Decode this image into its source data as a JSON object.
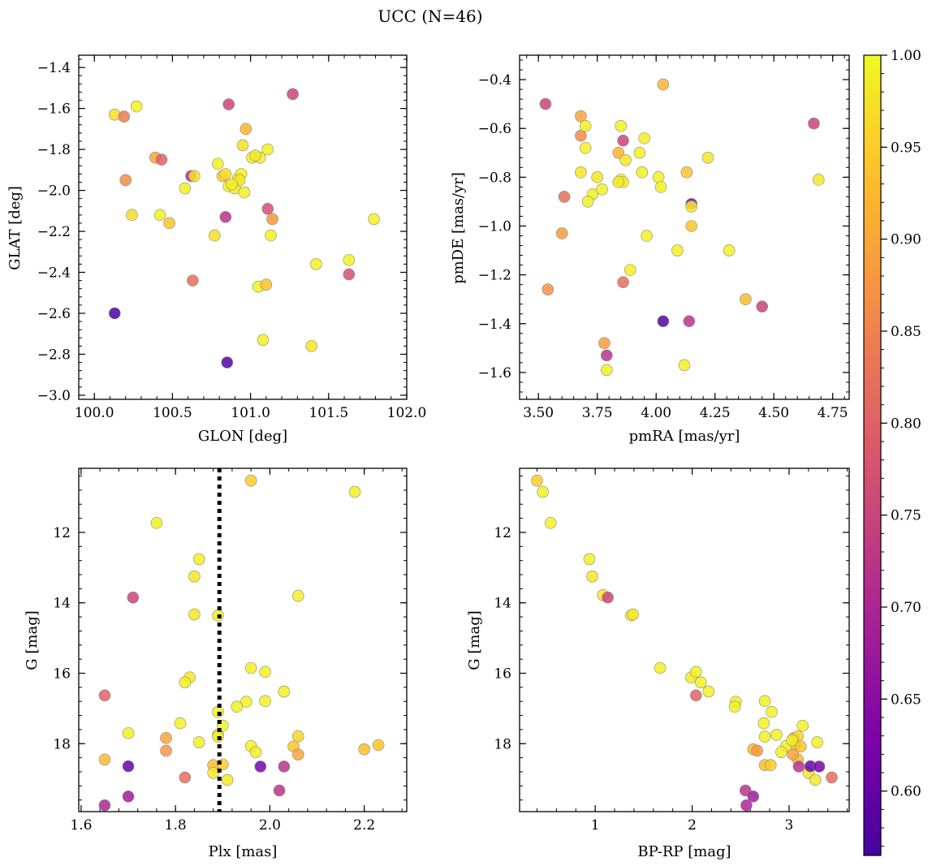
{
  "figure": {
    "title": "UCC (N=46)"
  },
  "colorbar": {
    "range": [
      0.565,
      1.0
    ],
    "ticks": [
      0.6,
      0.65,
      0.7,
      0.75,
      0.8,
      0.85,
      0.9,
      0.95,
      1.0
    ],
    "tick_labels": [
      "0.60",
      "0.65",
      "0.70",
      "0.75",
      "0.80",
      "0.85",
      "0.90",
      "0.95",
      "1.00"
    ],
    "colormap": "plasma"
  },
  "chart_data": [
    {
      "type": "scatter",
      "id": "glon-glat",
      "xlabel": "GLON [deg]",
      "ylabel": "GLAT [deg]",
      "xlim": [
        99.9,
        102.0
      ],
      "ylim": [
        -3.02,
        -1.34
      ],
      "xticks": [
        100.0,
        100.5,
        101.0,
        101.5,
        102.0
      ],
      "xtick_labels": [
        "100.0",
        "100.5",
        "101.0",
        "101.5",
        "102.0"
      ],
      "yticks": [
        -3.0,
        -2.8,
        -2.6,
        -2.4,
        -2.2,
        -2.0,
        -1.8,
        -1.6,
        -1.4
      ],
      "ytick_labels": [
        "−3.0",
        "−2.8",
        "−2.6",
        "−2.4",
        "−2.2",
        "−2.0",
        "−1.8",
        "−1.6",
        "−1.4"
      ],
      "points": [
        [
          100.13,
          -1.63,
          0.97
        ],
        [
          100.19,
          -1.64,
          0.84
        ],
        [
          100.27,
          -1.59,
          0.99
        ],
        [
          100.2,
          -1.95,
          0.86
        ],
        [
          100.24,
          -2.12,
          0.97
        ],
        [
          100.13,
          -2.6,
          0.57
        ],
        [
          100.39,
          -1.84,
          0.9
        ],
        [
          100.43,
          -1.85,
          0.8
        ],
        [
          100.42,
          -2.12,
          0.99
        ],
        [
          100.48,
          -2.16,
          0.94
        ],
        [
          100.58,
          -1.99,
          0.99
        ],
        [
          100.62,
          -1.93,
          0.7
        ],
        [
          100.64,
          -1.93,
          0.98
        ],
        [
          100.63,
          -2.44,
          0.82
        ],
        [
          100.77,
          -2.22,
          0.97
        ],
        [
          100.79,
          -1.87,
          0.99
        ],
        [
          100.82,
          -1.93,
          0.95
        ],
        [
          100.84,
          -1.92,
          0.97
        ],
        [
          100.86,
          -1.98,
          0.99
        ],
        [
          100.86,
          -1.58,
          0.75
        ],
        [
          100.84,
          -2.13,
          0.72
        ],
        [
          100.85,
          -2.84,
          0.58
        ],
        [
          100.9,
          -1.99,
          0.98
        ],
        [
          100.92,
          -1.94,
          0.99
        ],
        [
          100.94,
          -1.92,
          0.99
        ],
        [
          100.95,
          -1.78,
          0.97
        ],
        [
          100.97,
          -1.7,
          0.92
        ],
        [
          100.96,
          -2.01,
          0.99
        ],
        [
          101.01,
          -1.84,
          0.99
        ],
        [
          101.06,
          -1.84,
          0.99
        ],
        [
          101.11,
          -1.8,
          0.99
        ],
        [
          101.11,
          -2.09,
          0.77
        ],
        [
          101.14,
          -2.14,
          0.88
        ],
        [
          101.13,
          -2.22,
          0.99
        ],
        [
          101.05,
          -2.47,
          0.99
        ],
        [
          101.1,
          -2.46,
          0.94
        ],
        [
          101.08,
          -2.73,
          0.99
        ],
        [
          101.27,
          -1.53,
          0.75
        ],
        [
          101.39,
          -2.76,
          0.98
        ],
        [
          101.42,
          -2.36,
          0.99
        ],
        [
          101.63,
          -2.34,
          0.99
        ],
        [
          101.63,
          -2.41,
          0.77
        ],
        [
          101.79,
          -2.14,
          0.99
        ],
        [
          100.93,
          -1.95,
          0.98
        ],
        [
          101.03,
          -1.83,
          0.98
        ],
        [
          100.88,
          -1.97,
          0.99
        ]
      ]
    },
    {
      "type": "scatter",
      "id": "pm",
      "xlabel": "pmRA [mas/yr]",
      "ylabel": "pmDE [mas/yr]",
      "xlim": [
        3.42,
        4.82
      ],
      "ylim": [
        -1.71,
        -0.3
      ],
      "xticks": [
        3.5,
        3.75,
        4.0,
        4.25,
        4.5,
        4.75
      ],
      "xtick_labels": [
        "3.50",
        "3.75",
        "4.00",
        "4.25",
        "4.50",
        "4.75"
      ],
      "yticks": [
        -1.6,
        -1.4,
        -1.2,
        -1.0,
        -0.8,
        -0.6,
        -0.4
      ],
      "ytick_labels": [
        "−1.6",
        "−1.4",
        "−1.2",
        "−1.0",
        "−0.8",
        "−0.6",
        "−0.4"
      ],
      "points": [
        [
          3.53,
          -0.5,
          0.75
        ],
        [
          3.68,
          -0.55,
          0.9
        ],
        [
          3.68,
          -0.63,
          0.86
        ],
        [
          3.7,
          -0.59,
          0.99
        ],
        [
          3.7,
          -0.68,
          0.99
        ],
        [
          3.68,
          -0.78,
          0.98
        ],
        [
          3.61,
          -0.88,
          0.82
        ],
        [
          3.6,
          -1.03,
          0.88
        ],
        [
          3.54,
          -1.26,
          0.87
        ],
        [
          3.73,
          -0.87,
          0.99
        ],
        [
          3.75,
          -0.8,
          0.98
        ],
        [
          3.71,
          -0.9,
          0.99
        ],
        [
          3.77,
          -0.85,
          0.99
        ],
        [
          3.84,
          -0.7,
          0.92
        ],
        [
          3.86,
          -0.65,
          0.75
        ],
        [
          3.85,
          -0.59,
          0.99
        ],
        [
          3.85,
          -0.81,
          0.99
        ],
        [
          3.86,
          -0.82,
          0.99
        ],
        [
          3.84,
          -0.82,
          0.98
        ],
        [
          3.87,
          -0.73,
          0.98
        ],
        [
          3.93,
          -0.7,
          0.99
        ],
        [
          3.95,
          -0.64,
          0.99
        ],
        [
          3.94,
          -0.78,
          0.99
        ],
        [
          4.01,
          -0.8,
          0.99
        ],
        [
          4.03,
          -0.42,
          0.92
        ],
        [
          4.02,
          -0.84,
          0.99
        ],
        [
          4.13,
          -0.78,
          0.94
        ],
        [
          4.15,
          -0.91,
          0.62
        ],
        [
          4.15,
          -0.92,
          0.99
        ],
        [
          4.15,
          -1.0,
          0.94
        ],
        [
          4.22,
          -0.72,
          0.98
        ],
        [
          3.96,
          -1.04,
          0.99
        ],
        [
          4.09,
          -1.1,
          0.99
        ],
        [
          4.31,
          -1.1,
          0.99
        ],
        [
          3.89,
          -1.18,
          0.99
        ],
        [
          3.86,
          -1.23,
          0.82
        ],
        [
          4.38,
          -1.3,
          0.93
        ],
        [
          4.45,
          -1.33,
          0.75
        ],
        [
          4.03,
          -1.39,
          0.58
        ],
        [
          4.14,
          -1.39,
          0.72
        ],
        [
          3.78,
          -1.48,
          0.89
        ],
        [
          3.79,
          -1.53,
          0.72
        ],
        [
          3.79,
          -1.59,
          0.99
        ],
        [
          4.12,
          -1.57,
          0.99
        ],
        [
          4.67,
          -0.58,
          0.75
        ],
        [
          4.69,
          -0.81,
          0.98
        ]
      ]
    },
    {
      "type": "scatter",
      "id": "plx-g",
      "xlabel": "Plx [mas]",
      "ylabel": "G [mag]",
      "xlim": [
        1.595,
        2.29
      ],
      "ylim": [
        19.93,
        10.18
      ],
      "y_inverted": true,
      "vline": 1.893,
      "xticks": [
        1.6,
        1.8,
        2.0,
        2.2
      ],
      "xtick_labels": [
        "1.6",
        "1.8",
        "2.0",
        "2.2"
      ],
      "yticks": [
        12,
        14,
        16,
        18
      ],
      "ytick_labels": [
        "12",
        "14",
        "16",
        "18"
      ],
      "points": [
        [
          1.96,
          10.53,
          0.95
        ],
        [
          2.18,
          10.85,
          0.99
        ],
        [
          1.76,
          11.73,
          0.99
        ],
        [
          1.85,
          12.76,
          0.99
        ],
        [
          1.84,
          13.25,
          0.98
        ],
        [
          1.71,
          13.85,
          0.75
        ],
        [
          1.84,
          14.33,
          0.98
        ],
        [
          1.89,
          14.36,
          0.99
        ],
        [
          2.06,
          13.8,
          0.99
        ],
        [
          1.96,
          15.85,
          0.99
        ],
        [
          1.99,
          15.96,
          0.99
        ],
        [
          1.83,
          16.12,
          0.98
        ],
        [
          1.82,
          16.26,
          0.99
        ],
        [
          1.65,
          16.63,
          0.8
        ],
        [
          2.03,
          16.52,
          0.99
        ],
        [
          1.95,
          16.81,
          0.99
        ],
        [
          1.99,
          16.79,
          0.99
        ],
        [
          1.93,
          16.95,
          0.99
        ],
        [
          1.89,
          17.1,
          0.99
        ],
        [
          1.81,
          17.42,
          0.99
        ],
        [
          1.9,
          17.49,
          0.99
        ],
        [
          1.7,
          17.7,
          0.99
        ],
        [
          1.89,
          17.75,
          0.99
        ],
        [
          1.89,
          17.8,
          0.99
        ],
        [
          1.78,
          17.84,
          0.9
        ],
        [
          1.85,
          17.96,
          0.99
        ],
        [
          1.96,
          18.07,
          0.99
        ],
        [
          1.97,
          18.24,
          0.99
        ],
        [
          2.06,
          17.79,
          0.96
        ],
        [
          2.05,
          18.08,
          0.94
        ],
        [
          2.06,
          18.31,
          0.9
        ],
        [
          2.2,
          18.16,
          0.93
        ],
        [
          2.23,
          18.04,
          0.94
        ],
        [
          1.78,
          18.2,
          0.88
        ],
        [
          1.65,
          18.45,
          0.93
        ],
        [
          1.7,
          18.64,
          0.6
        ],
        [
          1.88,
          18.61,
          0.93
        ],
        [
          1.9,
          18.59,
          0.95
        ],
        [
          1.88,
          18.83,
          0.98
        ],
        [
          1.91,
          19.03,
          0.98
        ],
        [
          1.98,
          18.65,
          0.62
        ],
        [
          2.03,
          18.65,
          0.72
        ],
        [
          1.82,
          18.96,
          0.82
        ],
        [
          2.02,
          19.33,
          0.72
        ],
        [
          1.7,
          19.5,
          0.68
        ],
        [
          1.65,
          19.75,
          0.7
        ]
      ]
    },
    {
      "type": "scatter",
      "id": "cmd",
      "xlabel": "BP-RP [mag]",
      "ylabel": "G [mag]",
      "xlim": [
        0.22,
        3.62
      ],
      "ylim": [
        19.93,
        10.18
      ],
      "y_inverted": true,
      "xticks": [
        1,
        2,
        3
      ],
      "xtick_labels": [
        "1",
        "2",
        "3"
      ],
      "yticks": [
        12,
        14,
        16,
        18
      ],
      "ytick_labels": [
        "12",
        "14",
        "16",
        "18"
      ],
      "points": [
        [
          0.4,
          10.53,
          0.95
        ],
        [
          0.46,
          10.85,
          0.99
        ],
        [
          0.54,
          11.73,
          0.99
        ],
        [
          0.94,
          12.76,
          0.99
        ],
        [
          0.97,
          13.25,
          0.98
        ],
        [
          1.08,
          13.78,
          0.98
        ],
        [
          1.13,
          13.85,
          0.75
        ],
        [
          1.37,
          14.36,
          0.99
        ],
        [
          1.39,
          14.33,
          0.98
        ],
        [
          1.67,
          15.85,
          0.99
        ],
        [
          1.99,
          16.12,
          0.98
        ],
        [
          2.04,
          15.96,
          0.99
        ],
        [
          2.04,
          16.63,
          0.8
        ],
        [
          2.09,
          16.26,
          0.99
        ],
        [
          2.17,
          16.52,
          0.99
        ],
        [
          2.45,
          16.81,
          0.99
        ],
        [
          2.44,
          16.95,
          0.99
        ],
        [
          2.75,
          16.79,
          0.99
        ],
        [
          2.82,
          17.1,
          0.99
        ],
        [
          2.74,
          17.42,
          0.99
        ],
        [
          2.87,
          17.75,
          0.99
        ],
        [
          2.75,
          17.8,
          0.99
        ],
        [
          3.14,
          17.49,
          0.99
        ],
        [
          3.29,
          17.96,
          0.99
        ],
        [
          3.05,
          17.84,
          0.9
        ],
        [
          3.09,
          17.79,
          0.96
        ],
        [
          3.06,
          18.04,
          0.94
        ],
        [
          3.12,
          18.08,
          0.94
        ],
        [
          2.97,
          18.07,
          0.99
        ],
        [
          2.92,
          18.24,
          0.99
        ],
        [
          2.63,
          18.16,
          0.93
        ],
        [
          2.67,
          18.2,
          0.88
        ],
        [
          3.09,
          18.45,
          0.93
        ],
        [
          2.75,
          18.61,
          0.93
        ],
        [
          2.81,
          18.61,
          0.95
        ],
        [
          3.2,
          18.83,
          0.98
        ],
        [
          3.27,
          19.03,
          0.98
        ],
        [
          3.22,
          18.64,
          0.6
        ],
        [
          3.31,
          18.65,
          0.62
        ],
        [
          3.1,
          18.65,
          0.72
        ],
        [
          3.44,
          18.96,
          0.82
        ],
        [
          2.55,
          19.33,
          0.72
        ],
        [
          2.63,
          19.5,
          0.68
        ],
        [
          2.56,
          19.75,
          0.7
        ],
        [
          3.04,
          18.31,
          0.9
        ],
        [
          3.03,
          17.9,
          0.99
        ]
      ]
    }
  ]
}
